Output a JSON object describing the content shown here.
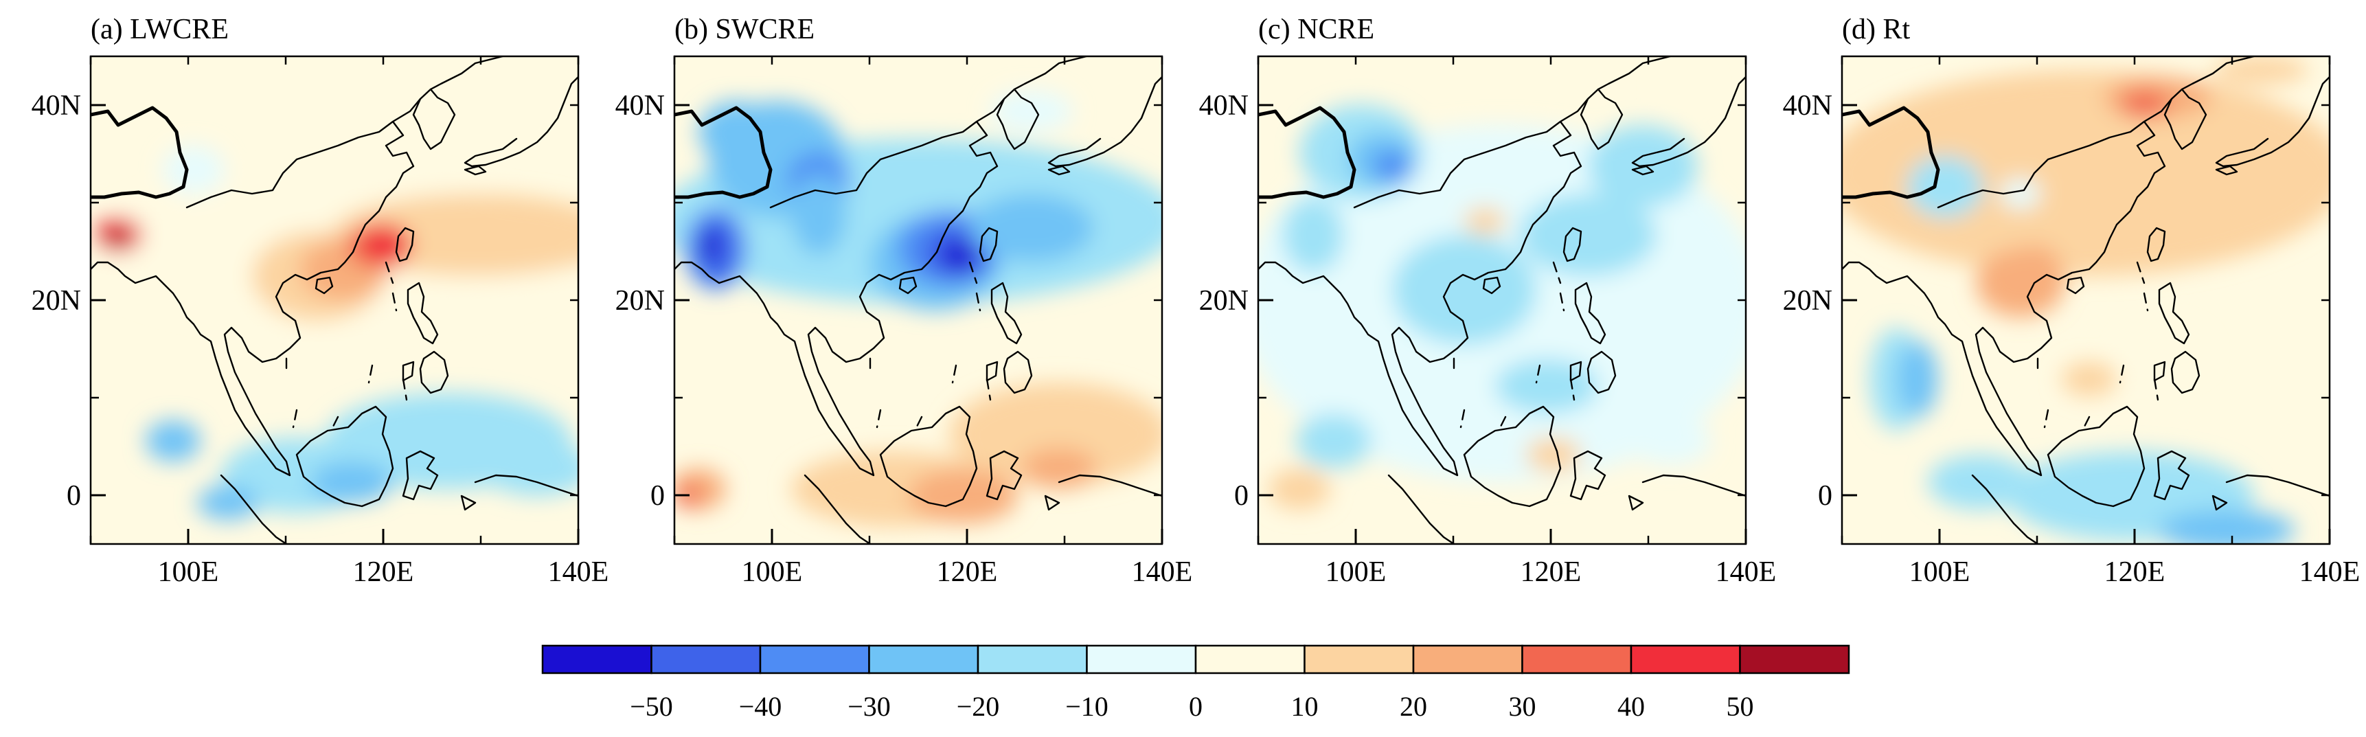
{
  "panels": [
    {
      "id": "lw",
      "title": "(a) LWCRE"
    },
    {
      "id": "sw",
      "title": "(b) SWCRE"
    },
    {
      "id": "net",
      "title": "(c) NCRE"
    },
    {
      "id": "rt",
      "title": "(d) Rt"
    }
  ],
  "map_extent": {
    "lon_min": 90,
    "lon_max": 140,
    "lat_min": -5,
    "lat_max": 45
  },
  "lon_ticks": [
    {
      "value": 100,
      "label": "100E"
    },
    {
      "value": 120,
      "label": "120E"
    },
    {
      "value": 140,
      "label": "140E"
    }
  ],
  "lat_ticks": [
    {
      "value": 40,
      "label": "40N"
    },
    {
      "value": 20,
      "label": "20N"
    },
    {
      "value": 0,
      "label": "0"
    }
  ],
  "colorbar": {
    "colors": [
      "#1a0fd2",
      "#3e63ea",
      "#4e8cf4",
      "#6fc3f6",
      "#9fe2f7",
      "#e6fbfd",
      "#fffae2",
      "#fcd4a1",
      "#f8ae7b",
      "#f26750",
      "#f12e3a",
      "#a50e24"
    ],
    "labels": [
      "-50",
      "-40",
      "-30",
      "-20",
      "-10",
      "0",
      "10",
      "20",
      "30",
      "40",
      "50"
    ],
    "levels": [
      -50,
      -40,
      -30,
      -20,
      -10,
      0,
      10,
      20,
      30,
      40,
      50
    ]
  }
}
